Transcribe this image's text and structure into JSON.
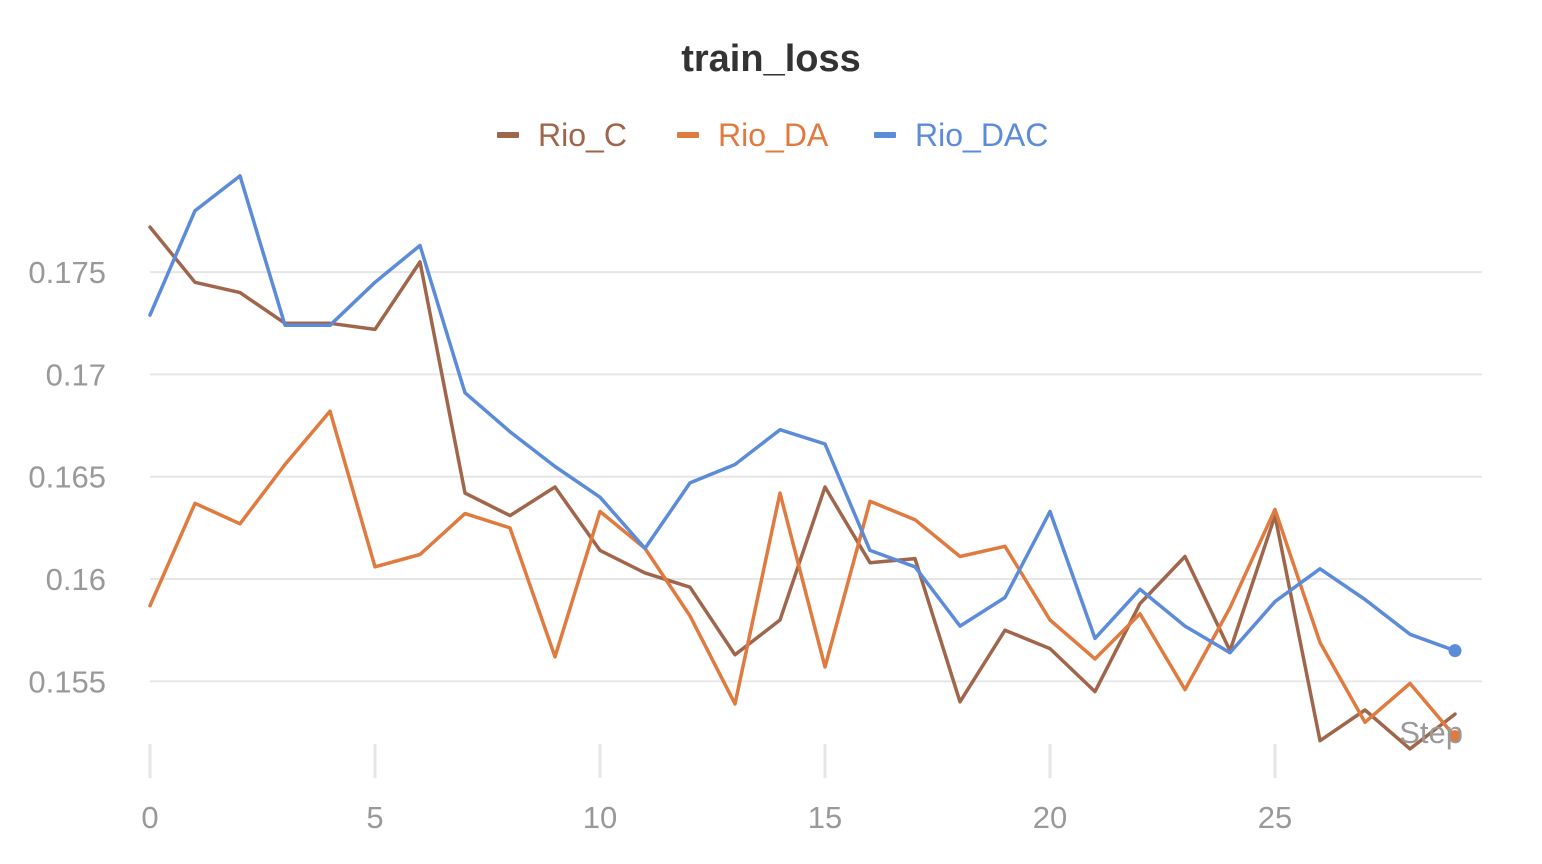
{
  "chart_data": {
    "type": "line",
    "title": "train_loss",
    "xlabel": "Step",
    "ylabel": "",
    "xlim": [
      0,
      30
    ],
    "ylim": [
      0.1515,
      0.1795
    ],
    "x_ticks": [
      0,
      5,
      10,
      15,
      20,
      25
    ],
    "y_ticks": [
      0.155,
      0.16,
      0.165,
      0.17,
      0.175
    ],
    "y_tick_labels": [
      "0.155",
      "0.16",
      "0.165",
      "0.17",
      "0.175"
    ],
    "grid": true,
    "legend_position": "top-center",
    "x": [
      0,
      1,
      2,
      3,
      4,
      5,
      6,
      7,
      8,
      9,
      10,
      11,
      12,
      13,
      14,
      15,
      16,
      17,
      18,
      19,
      20,
      21,
      22,
      23,
      24,
      25,
      26,
      27,
      28,
      29
    ],
    "series": [
      {
        "name": "Rio_C",
        "color": "#a0664b",
        "values": [
          0.1772,
          0.1745,
          0.174,
          0.1725,
          0.1725,
          0.1722,
          0.1755,
          0.1642,
          0.1631,
          0.1645,
          0.1614,
          0.1603,
          0.1596,
          0.1563,
          0.158,
          0.1645,
          0.1608,
          0.161,
          0.154,
          0.1575,
          0.1566,
          0.1545,
          0.1588,
          0.1611,
          0.1565,
          0.1631,
          0.1521,
          0.1536,
          0.1517,
          0.1534
        ]
      },
      {
        "name": "Rio_DA",
        "color": "#e07a3e",
        "values": [
          0.1587,
          0.1637,
          0.1627,
          0.1656,
          0.1682,
          0.1606,
          0.1612,
          0.1632,
          0.1625,
          0.1562,
          0.1633,
          0.1615,
          0.1582,
          0.1539,
          0.1642,
          0.1557,
          0.1638,
          0.1629,
          0.1611,
          0.1616,
          0.158,
          0.1561,
          0.1583,
          0.1546,
          0.1586,
          0.1634,
          0.1569,
          0.153,
          0.1549,
          0.1523
        ]
      },
      {
        "name": "Rio_DAC",
        "color": "#5b8bd9",
        "values": [
          0.1729,
          0.178,
          0.1797,
          0.1724,
          0.1724,
          0.1745,
          0.1763,
          0.1691,
          0.1672,
          0.1655,
          0.164,
          0.1615,
          0.1647,
          0.1656,
          0.1673,
          0.1666,
          0.1614,
          0.1606,
          0.1577,
          0.1591,
          0.1633,
          0.1571,
          0.1595,
          0.1577,
          0.1564,
          0.1589,
          0.1605,
          0.159,
          0.1573,
          0.1565
        ]
      }
    ]
  }
}
